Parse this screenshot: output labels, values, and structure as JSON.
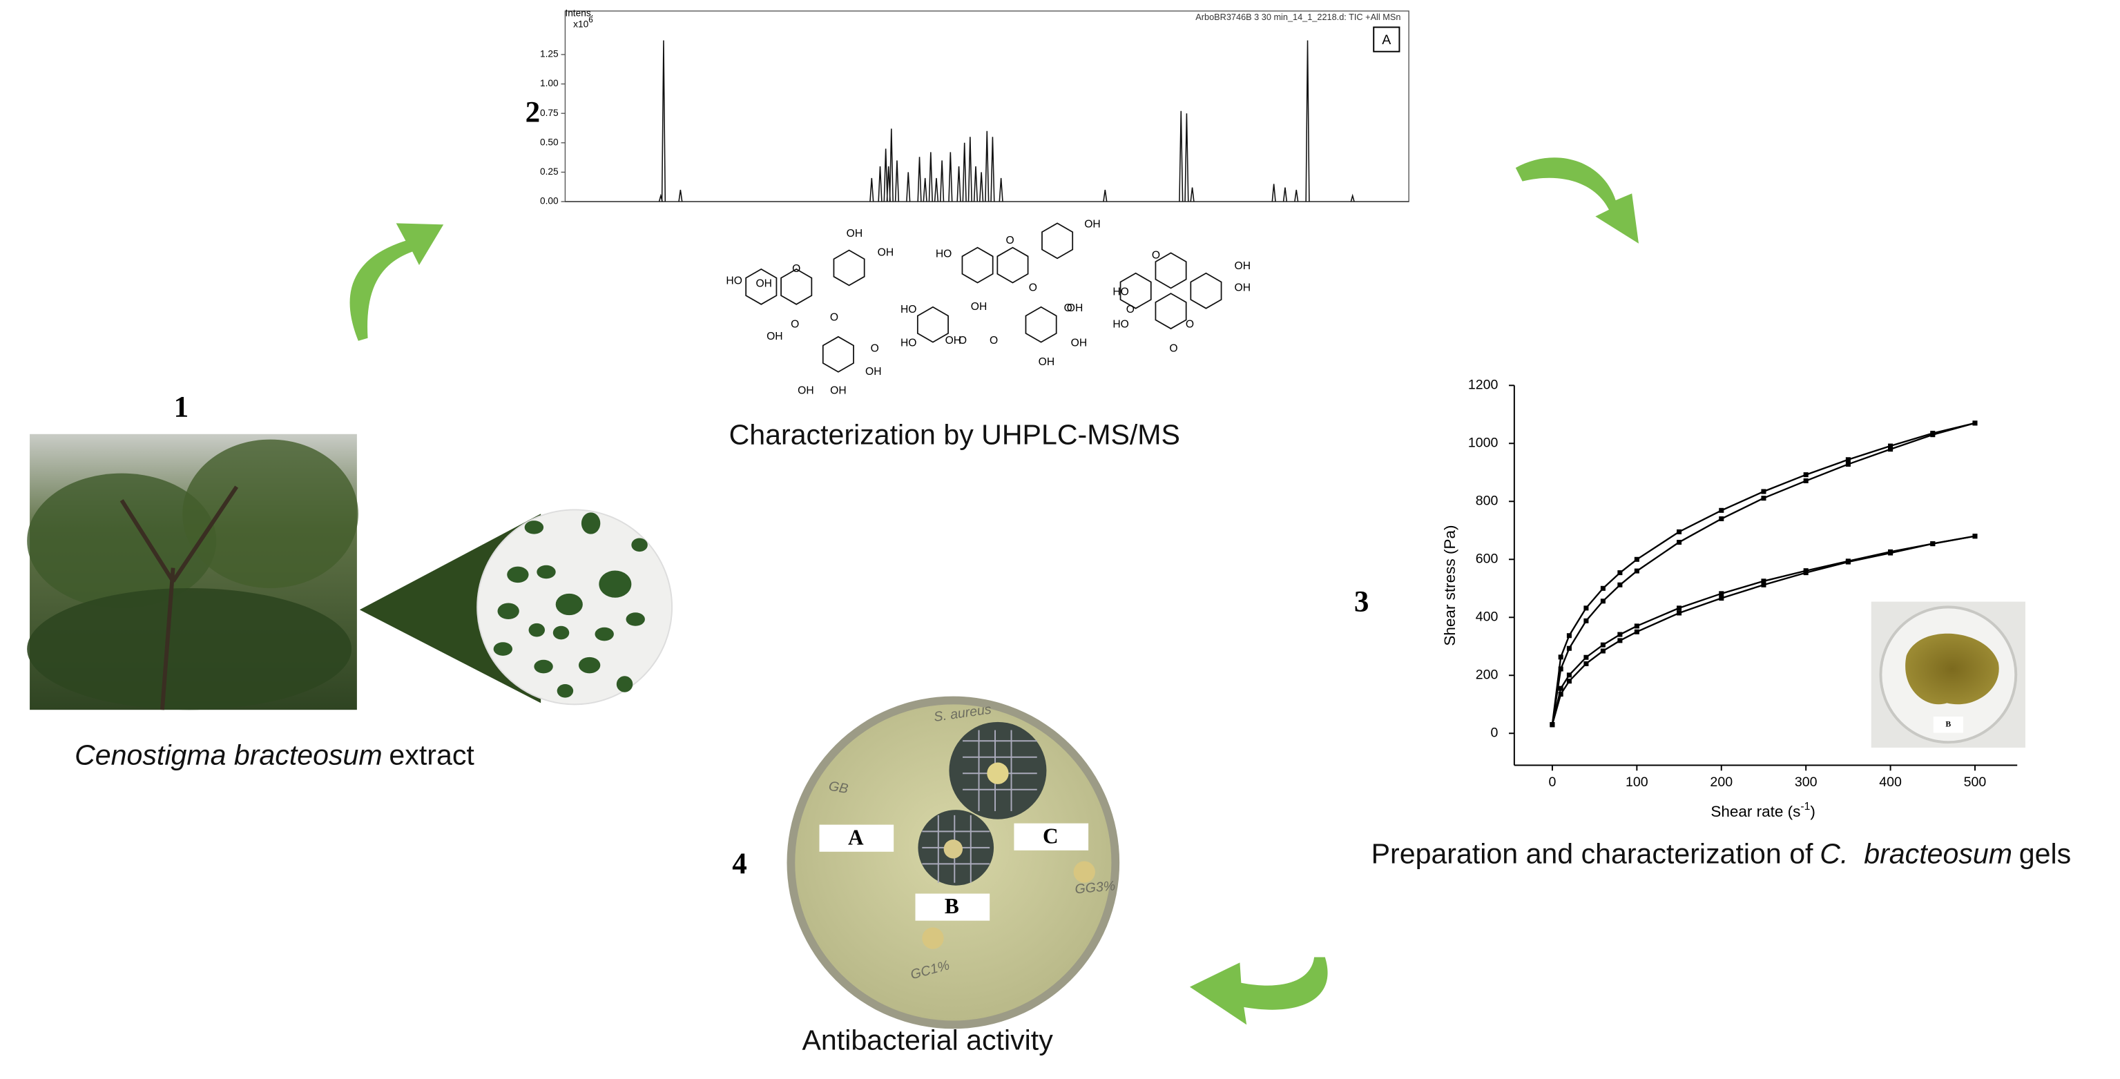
{
  "steps": [
    "1",
    "2",
    "3",
    "4"
  ],
  "captions": {
    "extract": {
      "species": "Cenostigma bracteosum",
      "rest": "extract"
    },
    "uhplc": "Characterization by UHPLC-MS/MS",
    "gels": {
      "pre": "Preparation and characterization of",
      "species": "C.  bracteosum",
      "post": "gels"
    },
    "antibacterial": "Antibacterial activity"
  },
  "chromatogram": {
    "y_label": "Intens.",
    "y_scale": {
      "base": "x10",
      "exp": "6"
    },
    "title": "ArboBR3746B 3 30 min_14_1_2218.d: TIC +All MSn",
    "panel": "A",
    "xlim": [
      0,
      30
    ],
    "ylim": [
      0,
      1.62
    ],
    "yticks": [
      {
        "value": 0,
        "label": "0.00"
      },
      {
        "value": 0.25,
        "label": "0.25"
      },
      {
        "value": 0.5,
        "label": "0.50"
      },
      {
        "value": 0.75,
        "label": "0.75"
      },
      {
        "value": 1,
        "label": "1.00"
      },
      {
        "value": 1.25,
        "label": "1.25"
      }
    ],
    "x": [
      3.4,
      3.5,
      4.1,
      10.9,
      11.2,
      11.4,
      11.5,
      11.6,
      11.8,
      12.2,
      12.6,
      12.8,
      13.0,
      13.2,
      13.4,
      13.7,
      14.0,
      14.2,
      14.4,
      14.6,
      14.8,
      15.0,
      15.2,
      15.5,
      19.2,
      21.9,
      22.1,
      22.3,
      25.2,
      25.6,
      26.0,
      26.4,
      28.0
    ],
    "values": [
      0.05,
      1.37,
      0.1,
      0.2,
      0.3,
      0.45,
      0.3,
      0.62,
      0.35,
      0.25,
      0.38,
      0.2,
      0.42,
      0.2,
      0.35,
      0.42,
      0.3,
      0.5,
      0.55,
      0.3,
      0.25,
      0.6,
      0.55,
      0.2,
      0.1,
      0.77,
      0.75,
      0.12,
      0.15,
      0.12,
      0.1,
      1.37,
      0.05
    ]
  },
  "structures": [
    {
      "labels": [
        "HO",
        "OH",
        "OH",
        "O",
        "O",
        "OH",
        "O",
        "O",
        "OH",
        "OH",
        "OH",
        "OH"
      ]
    },
    {
      "labels": [
        "OH",
        "HO",
        "O",
        "OH",
        "O",
        "O",
        "HO",
        "HO",
        "OH",
        "O",
        "O",
        "OH",
        "OH",
        "OH"
      ]
    },
    {
      "labels": [
        "O",
        "OH",
        "HO",
        "OH",
        "HO",
        "O",
        "O",
        "O"
      ]
    }
  ],
  "rheology": {
    "x_label": {
      "text": "Shear rate (s",
      "sup": "-1",
      "end": ")"
    },
    "y_label": "Shear stress (Pa)",
    "xlim": [
      -45,
      550
    ],
    "ylim": [
      -110,
      1200
    ],
    "xticks": [
      0,
      100,
      200,
      300,
      400,
      500
    ],
    "yticks": [
      0,
      200,
      400,
      600,
      800,
      1000,
      1200
    ],
    "x": [
      0,
      10,
      20,
      40,
      60,
      80,
      100,
      150,
      200,
      250,
      300,
      350,
      400,
      450,
      500
    ],
    "series": [
      {
        "color": "#000000",
        "values": [
          30,
          263,
          337,
          432,
          500,
          554,
          600,
          695,
          769,
          834,
          892,
          944,
          991,
          1035,
          1070
        ]
      },
      {
        "color": "#000000",
        "values": [
          30,
          222,
          293,
          388,
          456,
          512,
          560,
          659,
          740,
          811,
          871,
          928,
          980,
          1030,
          1070
        ]
      },
      {
        "color": "#000000",
        "values": [
          30,
          155,
          201,
          262,
          305,
          341,
          370,
          432,
          482,
          525,
          561,
          594,
          626,
          654,
          680
        ]
      },
      {
        "color": "#000000",
        "values": [
          30,
          135,
          180,
          240,
          284,
          320,
          350,
          415,
          466,
          512,
          554,
          591,
          622,
          654,
          680
        ]
      }
    ]
  },
  "gel_photo_label": "B",
  "plate": {
    "labels": [
      "A",
      "B",
      "C"
    ],
    "handwriting": [
      "S. aureus",
      "GB",
      "GG3%",
      "GC1%"
    ]
  }
}
